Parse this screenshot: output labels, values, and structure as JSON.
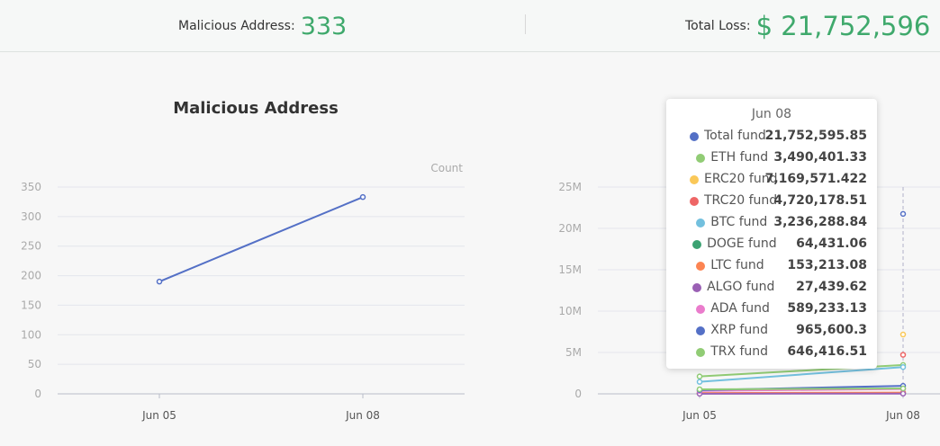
{
  "header": {
    "malicious_label": "Malicious Address:",
    "malicious_value": "333",
    "loss_label": "Total Loss:",
    "loss_value": "$ 21,752,596"
  },
  "left_chart_title": "Malicious Address",
  "tooltip": {
    "title": "Jun 08",
    "rows": [
      {
        "name": "Total fund",
        "value": "21,752,595.85",
        "color": "#5470c6"
      },
      {
        "name": "ETH fund",
        "value": "3,490,401.33",
        "color": "#91cc75"
      },
      {
        "name": "ERC20 fund",
        "value": "7,169,571.422",
        "color": "#fac858"
      },
      {
        "name": "TRC20 fund",
        "value": "4,720,178.51",
        "color": "#ee6666"
      },
      {
        "name": "BTC fund",
        "value": "3,236,288.84",
        "color": "#73c0de"
      },
      {
        "name": "DOGE fund",
        "value": "64,431.06",
        "color": "#3ba272"
      },
      {
        "name": "LTC fund",
        "value": "153,213.08",
        "color": "#fc8452"
      },
      {
        "name": "ALGO fund",
        "value": "27,439.62",
        "color": "#9a60b4"
      },
      {
        "name": "ADA fund",
        "value": "589,233.13",
        "color": "#ea7ccc"
      },
      {
        "name": "XRP fund",
        "value": "965,600.3",
        "color": "#5470c6"
      },
      {
        "name": "TRX fund",
        "value": "646,416.51",
        "color": "#91cc75"
      }
    ]
  },
  "chart_data": [
    {
      "type": "line",
      "title": "Malicious Address",
      "ylabel": "Count",
      "categories": [
        "Jun 05",
        "Jun 08"
      ],
      "ylim": [
        0,
        350
      ],
      "yticks": [
        "0",
        "50",
        "100",
        "150",
        "200",
        "250",
        "300",
        "350"
      ],
      "series": [
        {
          "values": [
            190,
            333
          ],
          "color": "#5470c6"
        }
      ]
    },
    {
      "type": "line",
      "categories": [
        "Jun 05",
        "Jun 08"
      ],
      "ylim": [
        0,
        25000000
      ],
      "yticks": [
        "0",
        "5M",
        "10M",
        "15M",
        "20M",
        "25M"
      ],
      "series": [
        {
          "name": "Total fund",
          "values": [
            null,
            21752595.85
          ],
          "color": "#5470c6"
        },
        {
          "name": "ETH fund",
          "values": [
            2100000,
            3490401.33
          ],
          "color": "#91cc75"
        },
        {
          "name": "ERC20 fund",
          "values": [
            null,
            7169571.422
          ],
          "color": "#fac858"
        },
        {
          "name": "TRC20 fund",
          "values": [
            null,
            4720178.51
          ],
          "color": "#ee6666"
        },
        {
          "name": "BTC fund",
          "values": [
            1450000,
            3236288.84
          ],
          "color": "#73c0de"
        },
        {
          "name": "DOGE fund",
          "values": [
            40000,
            64431.06
          ],
          "color": "#3ba272"
        },
        {
          "name": "LTC fund",
          "values": [
            100000,
            153213.08
          ],
          "color": "#fc8452"
        },
        {
          "name": "ALGO fund",
          "values": [
            20000,
            27439.62
          ],
          "color": "#9a60b4"
        },
        {
          "name": "ADA fund",
          "values": [
            350000,
            589233.13
          ],
          "color": "#ea7ccc"
        },
        {
          "name": "XRP fund",
          "values": [
            450000,
            965600.3
          ],
          "color": "#5470c6"
        },
        {
          "name": "TRX fund",
          "values": [
            550000,
            646416.51
          ],
          "color": "#91cc75"
        }
      ]
    }
  ]
}
